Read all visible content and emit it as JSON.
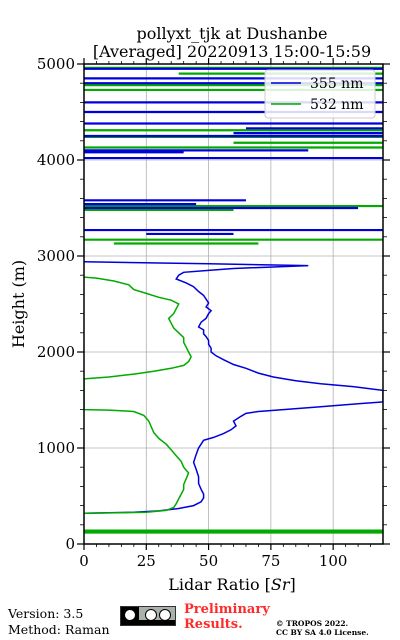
{
  "chart_data": {
    "type": "line",
    "title_line1": "pollyxt_tjk at Dushanbe",
    "title_line2": "[Averaged] 20220913 15:00-15:59",
    "xlabel": "Lidar Ratio [$Sr$]",
    "ylabel": "Height (m)",
    "xlim": [
      0,
      120
    ],
    "ylim": [
      0,
      5000
    ],
    "xticks": [
      "0",
      "25",
      "50",
      "75",
      "100"
    ],
    "yticks": [
      "0",
      "1000",
      "2000",
      "3000",
      "4000",
      "5000"
    ],
    "grid": true,
    "legend_position": "top-right",
    "series": [
      {
        "name": "355 nm",
        "color": "#0000dd",
        "points": [
          [
            0,
            320
          ],
          [
            20,
            330
          ],
          [
            30,
            345
          ],
          [
            38,
            370
          ],
          [
            44,
            400
          ],
          [
            47,
            440
          ],
          [
            48,
            480
          ],
          [
            48,
            520
          ],
          [
            47,
            570
          ],
          [
            46,
            630
          ],
          [
            46,
            700
          ],
          [
            45,
            780
          ],
          [
            44,
            850
          ],
          [
            45,
            930
          ],
          [
            46,
            1000
          ],
          [
            48,
            1080
          ],
          [
            52,
            1110
          ],
          [
            56,
            1150
          ],
          [
            59,
            1190
          ],
          [
            61,
            1230
          ],
          [
            60,
            1280
          ],
          [
            63,
            1330
          ],
          [
            65,
            1360
          ],
          [
            70,
            1380
          ],
          [
            80,
            1400
          ],
          [
            95,
            1430
          ],
          [
            110,
            1460
          ],
          [
            120,
            1480
          ],
          [
            120,
            1600
          ],
          [
            108,
            1640
          ],
          [
            95,
            1670
          ],
          [
            85,
            1700
          ],
          [
            76,
            1740
          ],
          [
            70,
            1780
          ],
          [
            65,
            1830
          ],
          [
            60,
            1870
          ],
          [
            56,
            1920
          ],
          [
            53,
            1960
          ],
          [
            51,
            2000
          ],
          [
            51,
            2040
          ],
          [
            50,
            2080
          ],
          [
            50,
            2120
          ],
          [
            49,
            2160
          ],
          [
            48,
            2190
          ],
          [
            48,
            2230
          ],
          [
            46,
            2260
          ],
          [
            47,
            2310
          ],
          [
            49,
            2350
          ],
          [
            50,
            2400
          ],
          [
            51,
            2430
          ],
          [
            49,
            2470
          ],
          [
            50,
            2510
          ],
          [
            49,
            2550
          ],
          [
            48,
            2590
          ],
          [
            46,
            2630
          ],
          [
            44,
            2680
          ],
          [
            41,
            2720
          ],
          [
            37,
            2760
          ],
          [
            38,
            2800
          ],
          [
            40,
            2830
          ],
          [
            50,
            2850
          ],
          [
            60,
            2870
          ],
          [
            90,
            2900
          ],
          [
            50,
            2920
          ],
          [
            0,
            2940
          ]
        ]
      },
      {
        "name": "532 nm",
        "color": "#00aa00",
        "points": [
          [
            0,
            320
          ],
          [
            25,
            330
          ],
          [
            33,
            350
          ],
          [
            36,
            380
          ],
          [
            37,
            420
          ],
          [
            38,
            470
          ],
          [
            39,
            520
          ],
          [
            40,
            570
          ],
          [
            40,
            620
          ],
          [
            41,
            680
          ],
          [
            42,
            740
          ],
          [
            40,
            800
          ],
          [
            39,
            860
          ],
          [
            37,
            920
          ],
          [
            35,
            980
          ],
          [
            33,
            1040
          ],
          [
            30,
            1100
          ],
          [
            28,
            1160
          ],
          [
            27,
            1220
          ],
          [
            26,
            1280
          ],
          [
            24,
            1340
          ],
          [
            20,
            1380
          ],
          [
            10,
            1395
          ],
          [
            0,
            1400
          ],
          [
            0,
            1720
          ],
          [
            10,
            1740
          ],
          [
            20,
            1770
          ],
          [
            28,
            1800
          ],
          [
            35,
            1830
          ],
          [
            40,
            1860
          ],
          [
            42,
            1900
          ],
          [
            43,
            1950
          ],
          [
            42,
            2000
          ],
          [
            41,
            2050
          ],
          [
            40,
            2100
          ],
          [
            40,
            2150
          ],
          [
            38,
            2200
          ],
          [
            36,
            2250
          ],
          [
            35,
            2300
          ],
          [
            34,
            2350
          ],
          [
            36,
            2400
          ],
          [
            37,
            2450
          ],
          [
            38,
            2500
          ],
          [
            35,
            2540
          ],
          [
            30,
            2570
          ],
          [
            25,
            2610
          ],
          [
            20,
            2650
          ],
          [
            18,
            2700
          ],
          [
            12,
            2740
          ],
          [
            5,
            2770
          ],
          [
            0,
            2780
          ]
        ]
      }
    ],
    "segments_355": [
      [
        0,
        3580,
        65
      ],
      [
        0,
        3540,
        45
      ],
      [
        0,
        3500,
        110
      ],
      [
        0,
        3270,
        120
      ],
      [
        25,
        3230,
        60
      ],
      [
        0,
        4020,
        120
      ],
      [
        0,
        4080,
        40
      ],
      [
        0,
        4100,
        90
      ],
      [
        0,
        4250,
        120
      ],
      [
        60,
        4280,
        120
      ],
      [
        65,
        4330,
        120
      ],
      [
        0,
        4380,
        120
      ],
      [
        0,
        4500,
        120
      ],
      [
        0,
        4600,
        120
      ],
      [
        0,
        4800,
        120
      ],
      [
        0,
        4850,
        120
      ],
      [
        0,
        4950,
        120
      ]
    ],
    "segments_532": [
      [
        0,
        3520,
        120
      ],
      [
        0,
        3480,
        60
      ],
      [
        0,
        3170,
        120
      ],
      [
        12,
        3130,
        70
      ],
      [
        0,
        4130,
        120
      ],
      [
        60,
        4180,
        120
      ],
      [
        0,
        4240,
        120
      ],
      [
        0,
        4310,
        120
      ],
      [
        0,
        4730,
        120
      ],
      [
        0,
        4780,
        120
      ],
      [
        38,
        4900,
        120
      ],
      [
        0,
        4960,
        120
      ],
      [
        0,
        140,
        120
      ],
      [
        0,
        120,
        120
      ]
    ],
    "legend": [
      "355 nm",
      "532 nm"
    ]
  },
  "footer": {
    "version": "Version: 3.5",
    "method": "Method: Raman",
    "prelim_line1": "Preliminary",
    "prelim_line2": "Results.",
    "license_line1": "© TROPOS 2022.",
    "license_line2": "CC BY SA 4.0 License."
  }
}
